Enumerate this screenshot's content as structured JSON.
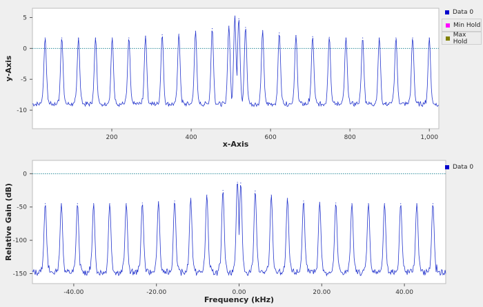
{
  "top_plot": {
    "legend": [
      {
        "label": "Data 0",
        "color": "#0000cc"
      },
      {
        "label": "Min Hold",
        "color": "#ff00ff"
      },
      {
        "label": "Max Hold",
        "color": "#808000"
      }
    ],
    "reference_line_color": "#2a8a9a",
    "trace_color": "#2233cc"
  },
  "bottom_plot": {
    "legend": [
      {
        "label": "Data 0",
        "color": "#0000cc"
      }
    ],
    "reference_line_color": "#2a8a9a",
    "trace_color": "#2233cc"
  },
  "chart_data": [
    {
      "type": "line",
      "xlabel": "x-Axis",
      "ylabel": "y-Axis",
      "xlim": [
        0,
        1024
      ],
      "ylim": [
        -13,
        6.5
      ],
      "x_ticks": [
        200,
        400,
        600,
        800,
        "1,000"
      ],
      "y_ticks": [
        5,
        0,
        -5,
        -10
      ],
      "grid": true,
      "legend_position": "right",
      "reference_line": 0,
      "series": [
        {
          "name": "Data 0",
          "baseline": -9,
          "peak_x": [
            32,
            74,
            116,
            159,
            201,
            243,
            285,
            327,
            369,
            411,
            453,
            495,
            510,
            520,
            537,
            580,
            622,
            664,
            706,
            748,
            790,
            832,
            874,
            916,
            958,
            1000
          ],
          "peak_y": [
            1.7,
            1.7,
            1.7,
            1.7,
            1.7,
            1.7,
            2.0,
            2.2,
            2.3,
            2.8,
            3.2,
            3.6,
            4.8,
            4.8,
            3.4,
            2.9,
            2.5,
            2.1,
            1.9,
            1.8,
            1.7,
            1.7,
            1.7,
            1.7,
            1.7,
            1.7
          ]
        }
      ]
    },
    {
      "type": "line",
      "xlabel": "Frequency (kHz)",
      "ylabel": "Relative Gain (dB)",
      "xlim": [
        -50,
        50
      ],
      "ylim": [
        -165,
        20
      ],
      "x_ticks": [
        "-40.00",
        "-20.00",
        "0.00",
        "20.00",
        "40.00"
      ],
      "y_ticks": [
        0,
        -50,
        -100,
        -150
      ],
      "grid": true,
      "legend_position": "right",
      "reference_line": 0,
      "series": [
        {
          "name": "Data 0",
          "baseline": -148,
          "peak_x": [
            -46.9,
            -43.0,
            -39.1,
            -35.2,
            -31.3,
            -27.3,
            -23.4,
            -19.5,
            -15.6,
            -11.7,
            -7.8,
            -3.9,
            -0.4,
            0.4,
            3.9,
            7.8,
            11.7,
            15.6,
            19.5,
            23.4,
            27.3,
            31.3,
            35.2,
            39.1,
            43.0,
            46.9
          ],
          "peak_y": [
            -45,
            -45,
            -45,
            -45,
            -45,
            -45,
            -44,
            -42,
            -41,
            -37,
            -32,
            -25,
            -13,
            -14,
            -26,
            -32,
            -37,
            -41,
            -43,
            -44,
            -45,
            -45,
            -45,
            -45,
            -45,
            -45
          ]
        }
      ]
    }
  ]
}
